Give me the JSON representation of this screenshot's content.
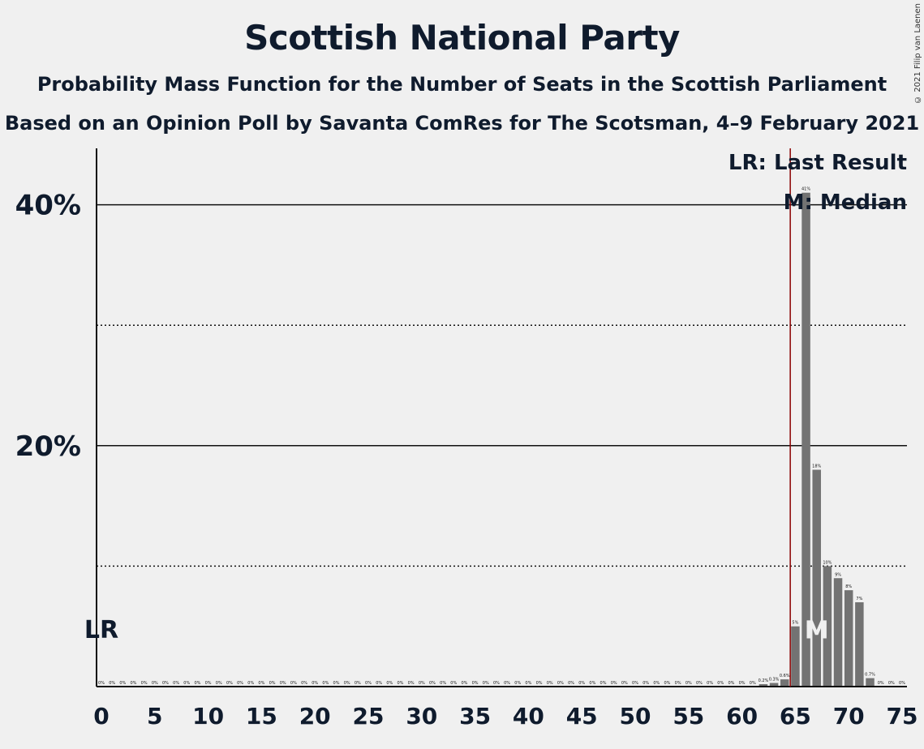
{
  "title": "Scottish National Party",
  "subtitle1": "Probability Mass Function for the Number of Seats in the Scottish Parliament",
  "subtitle2": "Based on an Opinion Poll by Savanta ComRes for The Scotsman, 4–9 February 2021",
  "copyright": "© 2021 Filip van Laenen",
  "legend": {
    "last_result": "LR: Last Result",
    "median": "M: Median"
  },
  "markers": {
    "last_result_label": "LR",
    "median_label": "M"
  },
  "colors": {
    "bar": "#737373",
    "last_result_line": "#8b0000",
    "text": "#0f1b2d",
    "background": "#f0f0f0"
  },
  "chart_data": {
    "type": "bar",
    "xlim": [
      0,
      75
    ],
    "ylim": [
      0,
      45
    ],
    "yticks": [
      20,
      40
    ],
    "ytick_labels": [
      "20%",
      "40%"
    ],
    "dotted_gridlines": [
      10,
      30
    ],
    "solid_gridlines": [
      20,
      40
    ],
    "xticks": [
      0,
      5,
      10,
      15,
      20,
      25,
      30,
      35,
      40,
      45,
      50,
      55,
      60,
      65,
      70,
      75
    ],
    "last_result": 65,
    "last_result_label_at_seat": 0,
    "median": 67,
    "seats": [
      0,
      1,
      2,
      3,
      4,
      5,
      6,
      7,
      8,
      9,
      10,
      11,
      12,
      13,
      14,
      15,
      16,
      17,
      18,
      19,
      20,
      21,
      22,
      23,
      24,
      25,
      26,
      27,
      28,
      29,
      30,
      31,
      32,
      33,
      34,
      35,
      36,
      37,
      38,
      39,
      40,
      41,
      42,
      43,
      44,
      45,
      46,
      47,
      48,
      49,
      50,
      51,
      52,
      53,
      54,
      55,
      56,
      57,
      58,
      59,
      60,
      61,
      62,
      63,
      64,
      65,
      66,
      67,
      68,
      69,
      70,
      71,
      72,
      73,
      74,
      75
    ],
    "values": [
      0,
      0,
      0,
      0,
      0,
      0,
      0,
      0,
      0,
      0,
      0,
      0,
      0,
      0,
      0,
      0,
      0,
      0,
      0,
      0,
      0,
      0,
      0,
      0,
      0,
      0,
      0,
      0,
      0,
      0,
      0,
      0,
      0,
      0,
      0,
      0,
      0,
      0,
      0,
      0,
      0,
      0,
      0,
      0,
      0,
      0,
      0,
      0,
      0,
      0,
      0,
      0,
      0,
      0,
      0,
      0,
      0,
      0,
      0,
      0,
      0,
      0,
      0.2,
      0.3,
      0.6,
      5,
      41,
      18,
      10,
      9,
      8,
      7,
      0.7,
      0,
      0,
      0
    ],
    "labels": [
      "0%",
      "0%",
      "0%",
      "0%",
      "0%",
      "0%",
      "0%",
      "0%",
      "0%",
      "0%",
      "0%",
      "0%",
      "0%",
      "0%",
      "0%",
      "0%",
      "0%",
      "0%",
      "0%",
      "0%",
      "0%",
      "0%",
      "0%",
      "0%",
      "0%",
      "0%",
      "0%",
      "0%",
      "0%",
      "0%",
      "0%",
      "0%",
      "0%",
      "0%",
      "0%",
      "0%",
      "0%",
      "0%",
      "0%",
      "0%",
      "0%",
      "0%",
      "0%",
      "0%",
      "0%",
      "0%",
      "0%",
      "0%",
      "0%",
      "0%",
      "0%",
      "0%",
      "0%",
      "0%",
      "0%",
      "0%",
      "0%",
      "0%",
      "0%",
      "0%",
      "0%",
      "0%",
      "0.2%",
      "0.3%",
      "0.6%",
      "5%",
      "41%",
      "18%",
      "10%",
      "9%",
      "8%",
      "7%",
      "0.7%",
      "0%",
      "0%",
      "0%"
    ]
  }
}
